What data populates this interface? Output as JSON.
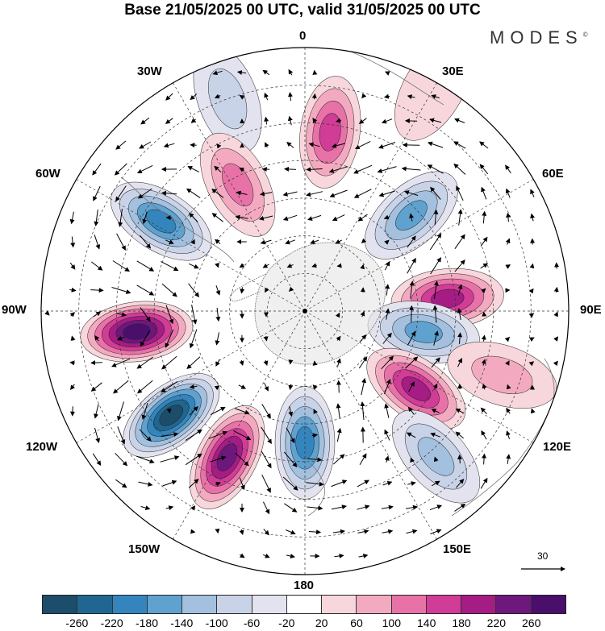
{
  "title": "Base 21/05/2025 00 UTC, valid 31/05/2025 00 UTC",
  "brand": "MODES",
  "brand_mark": "©",
  "projection": "south-polar-stereographic",
  "longitude_labels": {
    "lon_0": "0",
    "lon_30e": "30E",
    "lon_60e": "60E",
    "lon_90e": "90E",
    "lon_120e": "120E",
    "lon_150e": "150E",
    "lon_180": "180",
    "lon_150w": "150W",
    "lon_120w": "120W",
    "lon_90w": "90W",
    "lon_60w": "60W",
    "lon_30w": "30W"
  },
  "reference_vector": {
    "value": "30"
  },
  "colorbar": {
    "labels": [
      "-260",
      "-220",
      "-180",
      "-140",
      "-100",
      "-60",
      "-20",
      "20",
      "60",
      "100",
      "140",
      "180",
      "220",
      "260"
    ],
    "colors": [
      "#1c4d6b",
      "#1f6790",
      "#3485bd",
      "#5fa1cf",
      "#a3c0de",
      "#c9d3e8",
      "#e3e3f0",
      "#ffffff",
      "#f8d7dc",
      "#f3aac0",
      "#e872a8",
      "#d03c96",
      "#a51c84",
      "#6e177c",
      "#4a0f6b"
    ]
  },
  "anomaly_centers": [
    {
      "lon": 8,
      "lat": -42,
      "value": 150
    },
    {
      "lon": 48,
      "lat": -52,
      "value": -170
    },
    {
      "lon": 85,
      "lat": -52,
      "value": 215
    },
    {
      "lon": 100,
      "lat": -58,
      "value": -170
    },
    {
      "lon": 125,
      "lat": -54,
      "value": 200
    },
    {
      "lon": 138,
      "lat": -38,
      "value": -110
    },
    {
      "lon": 108,
      "lat": -35,
      "value": 80
    },
    {
      "lon": 180,
      "lat": -55,
      "value": -200
    },
    {
      "lon": -152,
      "lat": -46,
      "value": 230
    },
    {
      "lon": -128,
      "lat": -45,
      "value": -270
    },
    {
      "lon": -97,
      "lat": -45,
      "value": 270
    },
    {
      "lon": -58,
      "lat": -45,
      "value": -200
    },
    {
      "lon": -20,
      "lat": -30,
      "value": -60
    },
    {
      "lon": -28,
      "lat": -52,
      "value": 100
    },
    {
      "lon": 30,
      "lat": -22,
      "value": 40
    },
    {
      "lon": 0,
      "lat": -85,
      "value": -10
    }
  ]
}
